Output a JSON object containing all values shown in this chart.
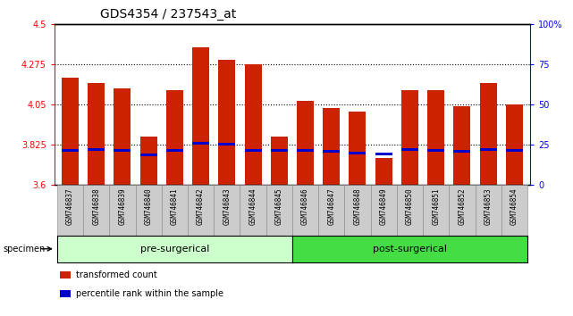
{
  "title": "GDS4354 / 237543_at",
  "samples": [
    "GSM746837",
    "GSM746838",
    "GSM746839",
    "GSM746840",
    "GSM746841",
    "GSM746842",
    "GSM746843",
    "GSM746844",
    "GSM746845",
    "GSM746846",
    "GSM746847",
    "GSM746848",
    "GSM746849",
    "GSM746850",
    "GSM746851",
    "GSM746852",
    "GSM746853",
    "GSM746854"
  ],
  "bar_values": [
    4.2,
    4.17,
    4.14,
    3.87,
    4.13,
    4.37,
    4.3,
    4.275,
    3.87,
    4.07,
    4.03,
    4.01,
    3.75,
    4.13,
    4.13,
    4.04,
    4.17,
    4.05
  ],
  "blue_values": [
    3.785,
    3.79,
    3.785,
    3.76,
    3.785,
    3.825,
    3.82,
    3.785,
    3.785,
    3.785,
    3.78,
    3.77,
    3.765,
    3.79,
    3.785,
    3.78,
    3.79,
    3.785
  ],
  "ymin": 3.6,
  "ymax": 4.5,
  "yticks": [
    3.6,
    3.825,
    4.05,
    4.275,
    4.5
  ],
  "ytick_labels": [
    "3.6",
    "3.825",
    "4.05",
    "4.275",
    "4.5"
  ],
  "right_yticks_pct": [
    0,
    25,
    50,
    75,
    100
  ],
  "right_ytick_labels": [
    "0",
    "25",
    "50",
    "75",
    "100%"
  ],
  "bar_color": "#cc2200",
  "blue_color": "#0000cc",
  "bar_bottom": 3.6,
  "pre_surgical_count": 9,
  "pre_surgical_label": "pre-surgerical",
  "post_surgical_label": "post-surgerical",
  "pre_color": "#ccffcc",
  "post_color": "#44dd44",
  "xtick_bg_color": "#cccccc",
  "specimen_label": "specimen",
  "legend_red": "transformed count",
  "legend_blue": "percentile rank within the sample",
  "grid_ticks": [
    3.825,
    4.05,
    4.275
  ],
  "blue_bar_height": 0.013
}
